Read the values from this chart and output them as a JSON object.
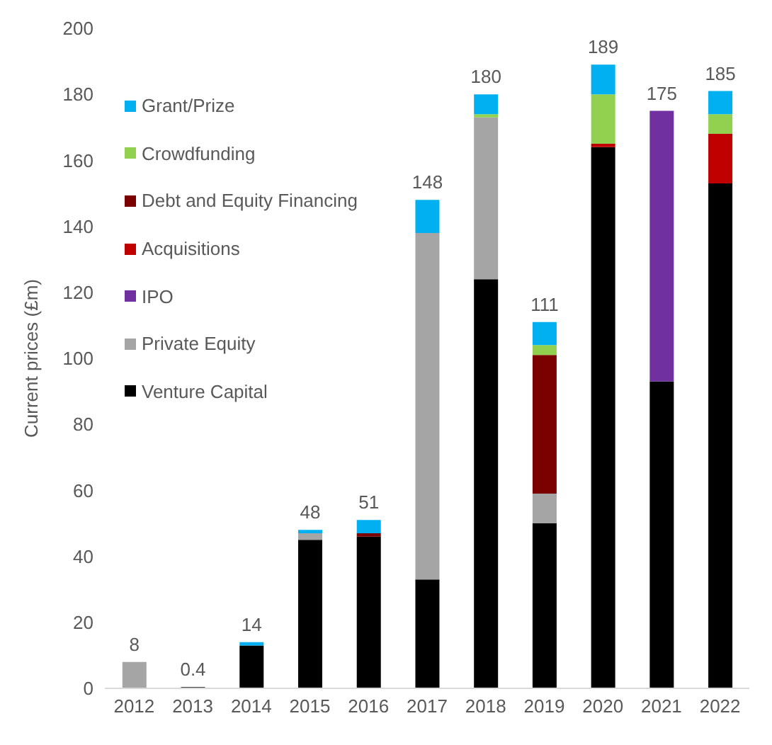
{
  "chart_data": {
    "type": "bar",
    "stacked": true,
    "ylabel": "Current prices (£m)",
    "categories": [
      "2012",
      "2013",
      "2014",
      "2015",
      "2016",
      "2017",
      "2018",
      "2019",
      "2020",
      "2021",
      "2022"
    ],
    "series": [
      {
        "name": "Venture Capital",
        "color": "#000000",
        "values": [
          null,
          0.4,
          13,
          45,
          46,
          33,
          124,
          50,
          164,
          93,
          153
        ]
      },
      {
        "name": "Private Equity",
        "color": "#a5a5a5",
        "values": [
          8,
          null,
          null,
          2,
          null,
          105,
          49,
          9,
          null,
          null,
          null
        ]
      },
      {
        "name": "IPO",
        "color": "#7030a0",
        "values": [
          null,
          null,
          null,
          null,
          null,
          null,
          null,
          null,
          null,
          82,
          null
        ]
      },
      {
        "name": "Acquisitions",
        "color": "#c00000",
        "values": [
          null,
          null,
          null,
          null,
          null,
          null,
          null,
          null,
          1,
          null,
          15
        ]
      },
      {
        "name": "Debt and Equity Financing",
        "color": "#7b0000",
        "values": [
          null,
          null,
          null,
          null,
          1,
          null,
          null,
          42,
          null,
          null,
          null
        ]
      },
      {
        "name": "Crowdfunding",
        "color": "#92d050",
        "values": [
          null,
          null,
          null,
          null,
          null,
          null,
          1,
          3,
          15,
          null,
          6
        ]
      },
      {
        "name": "Grant/Prize",
        "color": "#00b0f0",
        "values": [
          null,
          null,
          1,
          1,
          4,
          10,
          6,
          7,
          9,
          null,
          7
        ]
      }
    ],
    "totals": [
      "8",
      "0.4",
      "14",
      "48",
      "51",
      "148",
      "180",
      "111",
      "189",
      "175",
      "185"
    ],
    "ylim": [
      0,
      200
    ],
    "yticks": [
      0,
      20,
      40,
      60,
      80,
      100,
      120,
      140,
      160,
      180,
      200
    ],
    "grid": false,
    "legend": "top left"
  }
}
